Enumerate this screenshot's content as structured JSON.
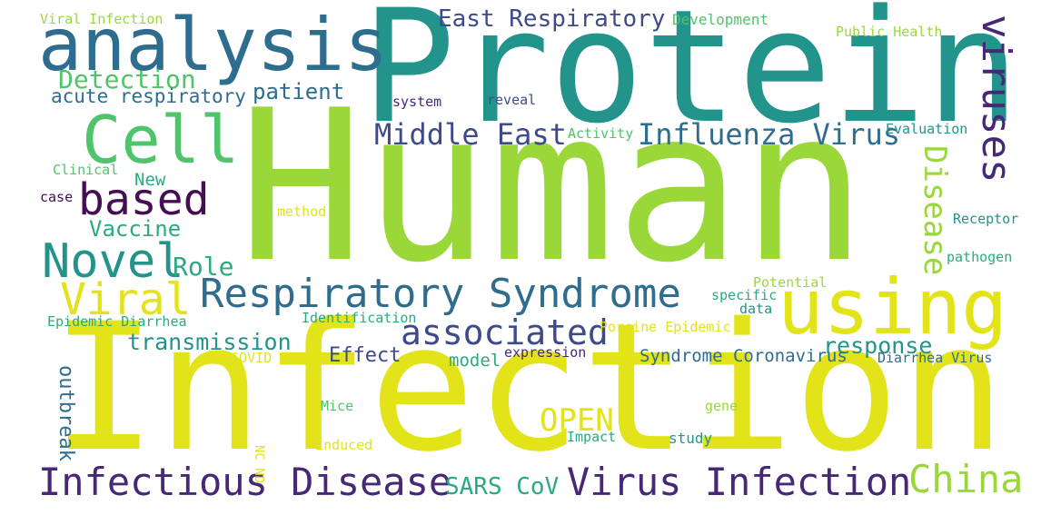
{
  "colors": {
    "background": "#ffffff",
    "yellow": "#e2e319",
    "lime": "#9ad83a",
    "green": "#4fc46a",
    "teal_green": "#2aaa80",
    "teal": "#22948b",
    "blue": "#2e6d8e",
    "indigo": "#3e4a89",
    "purple": "#472876",
    "dark_purple": "#440d54"
  },
  "words": [
    {
      "text": "Human"
    },
    {
      "text": "Protein"
    },
    {
      "text": "Infection"
    },
    {
      "text": "analysis"
    },
    {
      "text": "Cell"
    },
    {
      "text": "using"
    },
    {
      "text": "Respiratory Syndrome"
    },
    {
      "text": "viruses"
    },
    {
      "text": "Novel"
    },
    {
      "text": "based"
    },
    {
      "text": "Viral"
    },
    {
      "text": "associated"
    },
    {
      "text": "Infectious Disease"
    },
    {
      "text": "Virus Infection"
    },
    {
      "text": "China"
    },
    {
      "text": "Middle East"
    },
    {
      "text": "Influenza Virus"
    },
    {
      "text": "Disease"
    },
    {
      "text": "East Respiratory"
    },
    {
      "text": "Detection"
    },
    {
      "text": "OPEN"
    },
    {
      "text": "transmission"
    },
    {
      "text": "response"
    },
    {
      "text": "Role"
    },
    {
      "text": "Vaccine"
    },
    {
      "text": "patient"
    },
    {
      "text": "acute respiratory"
    },
    {
      "text": "SARS CoV"
    },
    {
      "text": "Effect"
    },
    {
      "text": "model"
    },
    {
      "text": "Syndrome Coronavirus"
    },
    {
      "text": "outbreak"
    },
    {
      "text": "New"
    },
    {
      "text": "Development"
    },
    {
      "text": "Public Health"
    },
    {
      "text": "Viral Infection"
    },
    {
      "text": "Clinical"
    },
    {
      "text": "case"
    },
    {
      "text": "system"
    },
    {
      "text": "reveal"
    },
    {
      "text": "Activity"
    },
    {
      "text": "Evaluation"
    },
    {
      "text": "method"
    },
    {
      "text": "Receptor"
    },
    {
      "text": "pathogen"
    },
    {
      "text": "Potential"
    },
    {
      "text": "specific"
    },
    {
      "text": "data"
    },
    {
      "text": "Epidemic Diarrhea"
    },
    {
      "text": "Identification"
    },
    {
      "text": "Porcine Epidemic"
    },
    {
      "text": "COVID"
    },
    {
      "text": "expression"
    },
    {
      "text": "Diarrhea Virus"
    },
    {
      "text": "Mice"
    },
    {
      "text": "gene"
    },
    {
      "text": "induced"
    },
    {
      "text": "Impact"
    },
    {
      "text": "study"
    },
    {
      "text": "NC ND"
    }
  ]
}
